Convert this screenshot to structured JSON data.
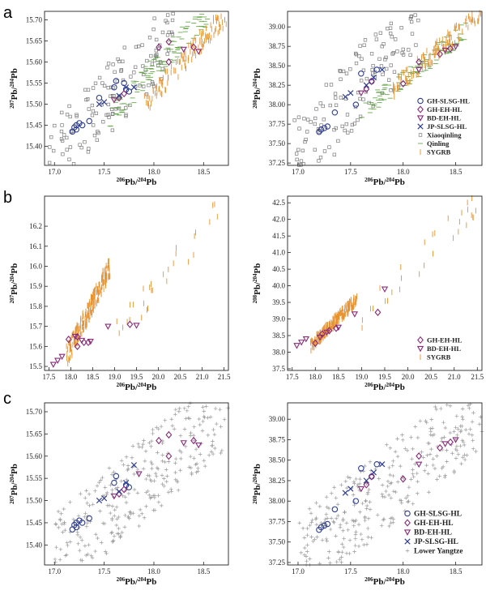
{
  "panel_letters": [
    "a",
    "b",
    "c"
  ],
  "colors": {
    "GH_SLSG_HL": "#2f3e8f",
    "GH_EH_HL": "#8a2a7a",
    "BD_EH_HL": "#8a2a7a",
    "JP_SLSG_HL": "#2f3e8f",
    "Xiaoqinling": "#7a7a7a",
    "Qinling": "#6aa84f",
    "SYGRB": "#e8922e",
    "Lower_Yangtze": "#9a9a9a"
  },
  "chart_data": [
    {
      "id": "a-left",
      "type": "scatter",
      "xlabel": "206Pb/204Pb",
      "ylabel": "207Pb/204Pb",
      "xlim": [
        16.9,
        18.75
      ],
      "ylim": [
        15.355,
        15.72
      ],
      "xticks": [
        "17.0",
        "17.5",
        "18.0",
        "18.5"
      ],
      "yticks": [
        "15.40",
        "15.45",
        "15.50",
        "15.55",
        "15.60",
        "15.65",
        "15.70"
      ],
      "series": [
        {
          "name": "GH-SLSG-HL",
          "marker": "circle",
          "points": [
            [
              17.18,
              15.435
            ],
            [
              17.2,
              15.445
            ],
            [
              17.22,
              15.45
            ],
            [
              17.25,
              15.455
            ],
            [
              17.22,
              15.44
            ],
            [
              17.28,
              15.45
            ],
            [
              17.35,
              15.46
            ],
            [
              17.45,
              15.515
            ],
            [
              17.6,
              15.54
            ],
            [
              17.62,
              15.555
            ],
            [
              17.72,
              15.535
            ],
            [
              17.75,
              15.53
            ],
            [
              17.7,
              15.55
            ]
          ]
        },
        {
          "name": "GH-EH-HL",
          "marker": "diamond",
          "points": [
            [
              17.65,
              15.515
            ],
            [
              17.7,
              15.525
            ],
            [
              18.05,
              15.635
            ],
            [
              18.15,
              15.648
            ],
            [
              18.15,
              15.6
            ],
            [
              18.4,
              15.635
            ]
          ]
        },
        {
          "name": "BD-EH-HL",
          "marker": "triangle",
          "points": [
            [
              17.6,
              15.51
            ],
            [
              18.3,
              15.63
            ],
            [
              18.45,
              15.625
            ]
          ]
        },
        {
          "name": "JP-SLSG-HL",
          "marker": "cross",
          "points": [
            [
              17.45,
              15.5
            ],
            [
              17.5,
              15.505
            ],
            [
              17.65,
              15.52
            ],
            [
              17.72,
              15.54
            ],
            [
              17.8,
              15.54
            ]
          ]
        }
      ],
      "backgrounds": [
        {
          "name": "Xiaoqinling",
          "marker": "square",
          "count": 140,
          "x": [
            16.95,
            18.2
          ],
          "y": [
            15.37,
            15.67
          ]
        },
        {
          "name": "Qinling",
          "marker": "hline",
          "count": 110,
          "x": [
            17.55,
            18.55
          ],
          "y": [
            15.47,
            15.72
          ]
        },
        {
          "name": "SYGRB",
          "marker": "vline",
          "count": 130,
          "x": [
            17.9,
            18.75
          ],
          "y": [
            15.5,
            15.72
          ]
        }
      ]
    },
    {
      "id": "a-right",
      "type": "scatter",
      "xlabel": "206Pb/204Pb",
      "ylabel": "208Pb/204Pb",
      "xlim": [
        16.9,
        18.75
      ],
      "ylim": [
        37.22,
        39.2
      ],
      "xticks": [
        "17.0",
        "17.5",
        "18.0",
        "18.5"
      ],
      "yticks": [
        "37.25",
        "37.50",
        "37.75",
        "38.00",
        "38.25",
        "38.50",
        "38.75",
        "39.00"
      ],
      "legend": [
        "GH-SLSG-HL",
        "GH-EH-HL",
        "BD-EH-HL",
        "JP-SLSG-HL",
        "Xiaoqinling",
        "Qinling",
        "SYGRB"
      ],
      "series": [
        {
          "name": "GH-SLSG-HL",
          "marker": "circle",
          "points": [
            [
              17.2,
              37.65
            ],
            [
              17.22,
              37.68
            ],
            [
              17.25,
              37.7
            ],
            [
              17.28,
              37.72
            ],
            [
              17.35,
              37.9
            ],
            [
              17.55,
              38.0
            ],
            [
              17.6,
              38.4
            ],
            [
              17.75,
              38.45
            ],
            [
              17.7,
              38.3
            ]
          ]
        },
        {
          "name": "GH-EH-HL",
          "marker": "diamond",
          "points": [
            [
              17.65,
              38.2
            ],
            [
              17.7,
              38.3
            ],
            [
              18.0,
              38.27
            ],
            [
              18.15,
              38.55
            ],
            [
              18.35,
              38.65
            ],
            [
              18.45,
              38.72
            ]
          ]
        },
        {
          "name": "BD-EH-HL",
          "marker": "triangle",
          "points": [
            [
              17.6,
              38.15
            ],
            [
              18.15,
              38.45
            ],
            [
              18.4,
              38.7
            ],
            [
              18.5,
              38.75
            ]
          ]
        },
        {
          "name": "JP-SLSG-HL",
          "marker": "cross",
          "points": [
            [
              17.45,
              38.1
            ],
            [
              17.5,
              38.15
            ],
            [
              17.65,
              38.25
            ],
            [
              17.72,
              38.35
            ],
            [
              17.8,
              38.45
            ]
          ]
        }
      ],
      "backgrounds": [
        {
          "name": "Xiaoqinling",
          "marker": "square",
          "count": 140,
          "x": [
            16.95,
            18.2
          ],
          "y": [
            37.28,
            39.15
          ]
        },
        {
          "name": "Qinling",
          "marker": "hline",
          "count": 110,
          "x": [
            17.6,
            18.6
          ],
          "y": [
            37.9,
            38.95
          ]
        },
        {
          "name": "SYGRB",
          "marker": "vline",
          "count": 130,
          "x": [
            17.9,
            18.75
          ],
          "y": [
            38.2,
            39.2
          ]
        }
      ]
    },
    {
      "id": "b-left",
      "type": "scatter",
      "xlabel": "206Pb/204Pb",
      "ylabel": "207Pb/204Pb",
      "xlim": [
        17.4,
        21.6
      ],
      "ylim": [
        15.48,
        16.35
      ],
      "xticks": [
        "17.5",
        "18.0",
        "18.5",
        "19.0",
        "19.5",
        "20.0",
        "20.5",
        "21.0",
        "21.5"
      ],
      "yticks": [
        "15.5",
        "15.6",
        "15.7",
        "15.8",
        "15.9",
        "16.0",
        "16.1",
        "16.2"
      ],
      "series": [
        {
          "name": "GH-EH-HL",
          "marker": "diamond",
          "points": [
            [
              17.95,
              15.635
            ],
            [
              18.15,
              15.6
            ],
            [
              18.3,
              15.62
            ],
            [
              18.4,
              15.62
            ],
            [
              19.35,
              15.71
            ],
            [
              18.15,
              15.648
            ]
          ]
        },
        {
          "name": "BD-EH-HL",
          "marker": "triangle",
          "points": [
            [
              17.6,
              15.51
            ],
            [
              17.7,
              15.53
            ],
            [
              17.8,
              15.55
            ],
            [
              18.25,
              15.63
            ],
            [
              18.45,
              15.625
            ],
            [
              18.85,
              15.7
            ],
            [
              19.5,
              15.705
            ],
            [
              18.1,
              15.65
            ]
          ]
        }
      ],
      "backgrounds": [
        {
          "name": "SYGRB",
          "marker": "vline",
          "count": 220,
          "x": [
            17.9,
            18.9
          ],
          "y": [
            15.55,
            16.0
          ]
        },
        {
          "name": "SYGRB",
          "marker": "vline",
          "count": 30,
          "x": [
            19.0,
            21.5
          ],
          "y": [
            15.65,
            16.3
          ]
        }
      ]
    },
    {
      "id": "b-right",
      "type": "scatter",
      "xlabel": "206Pb/204Pb",
      "ylabel": "208Pb/204Pb",
      "xlim": [
        17.4,
        21.6
      ],
      "ylim": [
        37.45,
        42.7
      ],
      "xticks": [
        "17.5",
        "18.0",
        "18.5",
        "19.0",
        "19.5",
        "20.0",
        "20.5",
        "21.0",
        "21.5"
      ],
      "yticks": [
        "37.5",
        "38.0",
        "38.5",
        "39.0",
        "39.5",
        "40.0",
        "40.5",
        "41.0",
        "41.5",
        "42.0",
        "42.5"
      ],
      "legend": [
        "GH-EH-HL",
        "BD-EH-HL",
        "SYGRB"
      ],
      "series": [
        {
          "name": "GH-EH-HL",
          "marker": "diamond",
          "points": [
            [
              18.0,
              38.27
            ],
            [
              18.15,
              38.55
            ],
            [
              18.3,
              38.65
            ],
            [
              18.45,
              38.72
            ],
            [
              19.35,
              39.2
            ]
          ]
        },
        {
          "name": "BD-EH-HL",
          "marker": "triangle",
          "points": [
            [
              17.6,
              38.2
            ],
            [
              17.7,
              38.3
            ],
            [
              17.8,
              38.4
            ],
            [
              18.1,
              38.45
            ],
            [
              18.25,
              38.6
            ],
            [
              18.5,
              38.75
            ],
            [
              18.85,
              39.15
            ],
            [
              19.5,
              39.9
            ]
          ]
        }
      ],
      "backgrounds": [
        {
          "name": "SYGRB",
          "marker": "vline",
          "count": 220,
          "x": [
            17.9,
            18.9
          ],
          "y": [
            38.2,
            39.6
          ]
        },
        {
          "name": "SYGRB",
          "marker": "vline",
          "count": 30,
          "x": [
            19.0,
            21.5
          ],
          "y": [
            39.0,
            42.5
          ]
        }
      ]
    },
    {
      "id": "c-left",
      "type": "scatter",
      "xlabel": "206Pb/204Pb",
      "ylabel": "207Pb/204Pb",
      "xlim": [
        16.9,
        18.75
      ],
      "ylim": [
        15.355,
        15.72
      ],
      "xticks": [
        "17.0",
        "17.5",
        "18.0",
        "18.5"
      ],
      "yticks": [
        "15.40",
        "15.45",
        "15.50",
        "15.55",
        "15.60",
        "15.65",
        "15.70"
      ],
      "series": [
        {
          "name": "GH-SLSG-HL",
          "marker": "circle",
          "points": [
            [
              17.18,
              15.435
            ],
            [
              17.2,
              15.445
            ],
            [
              17.22,
              15.45
            ],
            [
              17.25,
              15.455
            ],
            [
              17.22,
              15.44
            ],
            [
              17.28,
              15.45
            ],
            [
              17.35,
              15.46
            ],
            [
              17.6,
              15.54
            ],
            [
              17.62,
              15.555
            ],
            [
              17.72,
              15.535
            ],
            [
              17.75,
              15.53
            ]
          ]
        },
        {
          "name": "GH-EH-HL",
          "marker": "diamond",
          "points": [
            [
              17.65,
              15.515
            ],
            [
              17.7,
              15.525
            ],
            [
              18.05,
              15.635
            ],
            [
              18.15,
              15.648
            ],
            [
              18.15,
              15.6
            ],
            [
              18.4,
              15.635
            ]
          ]
        },
        {
          "name": "BD-EH-HL",
          "marker": "triangle",
          "points": [
            [
              17.6,
              15.51
            ],
            [
              17.85,
              15.56
            ],
            [
              18.3,
              15.63
            ],
            [
              18.45,
              15.625
            ]
          ]
        },
        {
          "name": "JP-SLSG-HL",
          "marker": "cross",
          "points": [
            [
              17.45,
              15.5
            ],
            [
              17.5,
              15.505
            ],
            [
              17.65,
              15.52
            ],
            [
              17.72,
              15.54
            ],
            [
              17.8,
              15.58
            ]
          ]
        }
      ],
      "backgrounds": [
        {
          "name": "Lower Yangtze",
          "marker": "plus",
          "count": 330,
          "x": [
            17.0,
            18.75
          ],
          "y": [
            15.37,
            15.72
          ]
        }
      ]
    },
    {
      "id": "c-right",
      "type": "scatter",
      "xlabel": "206Pb/204Pb",
      "ylabel": "208Pb/204Pb",
      "xlim": [
        16.9,
        18.75
      ],
      "ylim": [
        37.22,
        39.2
      ],
      "xticks": [
        "17.0",
        "17.5",
        "18.0",
        "18.5"
      ],
      "yticks": [
        "37.25",
        "37.50",
        "37.75",
        "38.00",
        "38.25",
        "38.50",
        "38.75",
        "39.00"
      ],
      "legend": [
        "GH-SLSG-HL",
        "GH-EH-HL",
        "BD-EH-HL",
        "JP-SLSG-HL",
        "Lower Yangtze"
      ],
      "series": [
        {
          "name": "GH-SLSG-HL",
          "marker": "circle",
          "points": [
            [
              17.2,
              37.65
            ],
            [
              17.22,
              37.68
            ],
            [
              17.25,
              37.7
            ],
            [
              17.28,
              37.72
            ],
            [
              17.35,
              37.9
            ],
            [
              17.55,
              38.0
            ],
            [
              17.6,
              38.4
            ],
            [
              17.75,
              38.45
            ],
            [
              17.7,
              38.3
            ]
          ]
        },
        {
          "name": "GH-EH-HL",
          "marker": "diamond",
          "points": [
            [
              17.65,
              38.2
            ],
            [
              17.7,
              38.3
            ],
            [
              18.0,
              38.27
            ],
            [
              18.15,
              38.55
            ],
            [
              18.35,
              38.65
            ],
            [
              18.45,
              38.72
            ]
          ]
        },
        {
          "name": "BD-EH-HL",
          "marker": "triangle",
          "points": [
            [
              17.6,
              38.15
            ],
            [
              18.15,
              38.45
            ],
            [
              18.4,
              38.7
            ],
            [
              18.5,
              38.75
            ]
          ]
        },
        {
          "name": "JP-SLSG-HL",
          "marker": "cross",
          "points": [
            [
              17.45,
              38.1
            ],
            [
              17.5,
              38.15
            ],
            [
              17.65,
              38.25
            ],
            [
              17.72,
              38.35
            ],
            [
              17.8,
              38.45
            ]
          ]
        }
      ],
      "backgrounds": [
        {
          "name": "Lower Yangtze",
          "marker": "plus",
          "count": 330,
          "x": [
            17.0,
            18.75
          ],
          "y": [
            37.28,
            39.15
          ]
        }
      ]
    }
  ]
}
